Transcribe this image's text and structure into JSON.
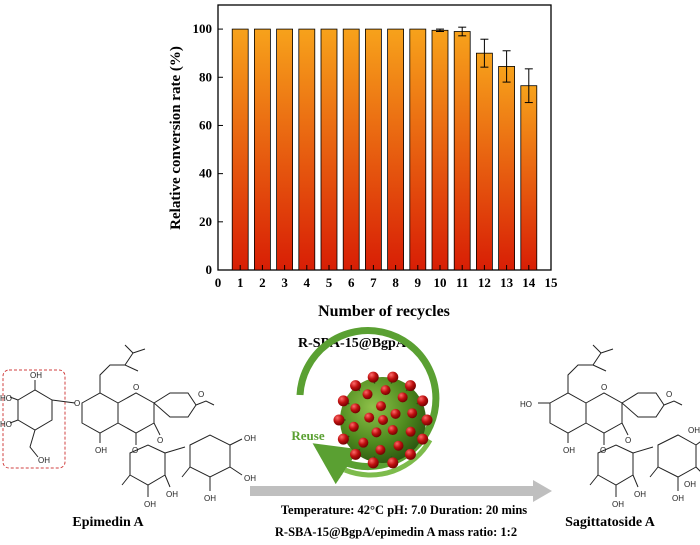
{
  "chart_data": {
    "type": "bar",
    "categories": [
      1,
      2,
      3,
      4,
      5,
      6,
      7,
      8,
      9,
      10,
      11,
      12,
      13,
      14
    ],
    "values": [
      100,
      100,
      100,
      100,
      100,
      100,
      100,
      100,
      100,
      99.5,
      99,
      90,
      84.5,
      76.5
    ],
    "errors": [
      0,
      0,
      0,
      0,
      0,
      0,
      0,
      0,
      0,
      0.5,
      1.8,
      5.8,
      6.5,
      7
    ],
    "xlabel": "Number of recycles",
    "ylabel": "Relative conversion rate (%)",
    "xlim": [
      0,
      15
    ],
    "ylim": [
      0,
      110
    ],
    "xticks": [
      0,
      1,
      2,
      3,
      4,
      5,
      6,
      7,
      8,
      9,
      10,
      11,
      12,
      13,
      14,
      15
    ],
    "yticks": [
      0,
      20,
      40,
      60,
      80,
      100
    ],
    "bar_gradient": {
      "top": "#f7a21b",
      "bottom": "#d81e05"
    }
  },
  "scheme": {
    "catalyst_name": "R-SBA-15@BgpA",
    "reuse_label": "Reuse",
    "substrate_name": "Epimedin A",
    "product_name": "Sagittatoside A",
    "condition_line1": "Temperature: 42°C  pH: 7.0  Duration: 20 mins",
    "condition_line2": "R-SBA-15@BgpA/epimedin A mass ratio: 1:2",
    "colors": {
      "sphere": "#4e8a1e",
      "beads": "#c01010",
      "reuse_arrow": "#5aa032",
      "process_arrow": "#bfbfbf"
    }
  },
  "structures": {
    "O": "O",
    "OH": "OH",
    "HO": "HO"
  }
}
